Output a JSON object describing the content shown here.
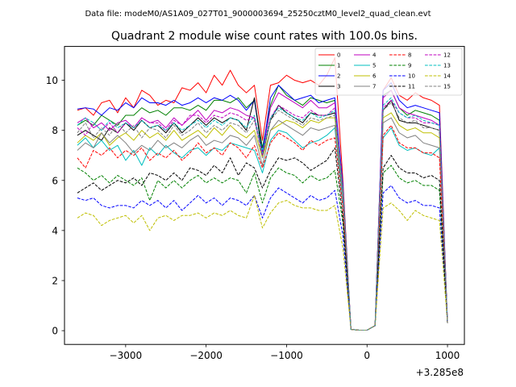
{
  "figure": {
    "suptitle": "Data file: modeM0/AS1A09_027T01_9000003694_25250cztM0_level2_quad_clean.evt"
  },
  "chart_data": {
    "type": "line",
    "title": "Quadrant 2 module wise count rates with 100.0s bins.",
    "xlabel": "",
    "ylabel": "",
    "x_offset_label": "+3.285e8",
    "xlim": [
      -3760,
      1210
    ],
    "ylim": [
      -0.55,
      11.35
    ],
    "xticks": [
      -3000,
      -2000,
      -1000,
      0,
      1000
    ],
    "xtick_labels": [
      "−3000",
      "−2000",
      "−1000",
      "0",
      "1000"
    ],
    "yticks": [
      0,
      2,
      4,
      6,
      8,
      10
    ],
    "ytick_labels": [
      "0",
      "2",
      "4",
      "6",
      "8",
      "10"
    ],
    "legend_position": "upper right",
    "x": [
      -3600,
      -3500,
      -3400,
      -3300,
      -3200,
      -3100,
      -3000,
      -2900,
      -2800,
      -2700,
      -2600,
      -2500,
      -2400,
      -2300,
      -2200,
      -2100,
      -2000,
      -1900,
      -1800,
      -1700,
      -1600,
      -1500,
      -1400,
      -1300,
      -1200,
      -1100,
      -1000,
      -900,
      -800,
      -700,
      -600,
      -500,
      -400,
      -300,
      -200,
      -100,
      0,
      100,
      200,
      300,
      400,
      500,
      600,
      700,
      800,
      900,
      1000
    ],
    "series": [
      {
        "name": "0",
        "color": "#ff0000",
        "dash": "solid",
        "values": [
          8.8,
          8.9,
          8.6,
          9.1,
          9.2,
          8.7,
          9.3,
          8.9,
          9.6,
          9.4,
          9.0,
          9.2,
          9.1,
          9.7,
          9.6,
          9.9,
          9.5,
          10.2,
          9.8,
          10.4,
          9.8,
          9.5,
          9.8,
          7.6,
          9.8,
          9.9,
          10.2,
          10.0,
          9.9,
          10.0,
          9.8,
          10.2,
          10.9,
          6.0,
          0.05,
          0.02,
          0.02,
          0.2,
          9.6,
          10.1,
          9.4,
          9.2,
          9.5,
          9.3,
          9.2,
          9.0,
          0.3
        ]
      },
      {
        "name": "1",
        "color": "#008000",
        "dash": "solid",
        "values": [
          8.2,
          8.4,
          8.2,
          8.6,
          8.4,
          8.2,
          8.6,
          8.6,
          8.9,
          8.7,
          8.8,
          8.6,
          8.9,
          8.9,
          8.8,
          9.0,
          8.8,
          9.2,
          9.2,
          9.1,
          9.3,
          8.9,
          9.2,
          7.3,
          9.0,
          9.8,
          9.4,
          9.2,
          9.0,
          9.3,
          9.2,
          9.1,
          9.2,
          5.7,
          0.05,
          0.02,
          0.02,
          0.2,
          9.4,
          9.6,
          8.9,
          8.6,
          8.8,
          8.7,
          8.6,
          8.4,
          0.3
        ]
      },
      {
        "name": "2",
        "color": "#0000ff",
        "dash": "solid",
        "values": [
          8.85,
          8.9,
          8.85,
          8.6,
          8.9,
          8.8,
          9.1,
          8.9,
          9.3,
          9.1,
          9.1,
          9.0,
          9.2,
          9.0,
          9.1,
          9.3,
          9.1,
          9.3,
          9.2,
          9.4,
          9.2,
          8.8,
          9.2,
          7.1,
          9.3,
          9.8,
          9.5,
          9.2,
          9.3,
          9.4,
          9.1,
          9.2,
          9.3,
          5.8,
          0.05,
          0.02,
          0.02,
          0.2,
          9.6,
          9.9,
          9.2,
          8.9,
          9.0,
          8.9,
          8.8,
          8.7,
          0.3
        ]
      },
      {
        "name": "3",
        "color": "#000000",
        "dash": "solid",
        "values": [
          7.8,
          8.0,
          7.8,
          7.6,
          8.1,
          7.9,
          8.3,
          8.0,
          8.4,
          8.1,
          8.2,
          7.9,
          8.3,
          7.9,
          8.2,
          8.5,
          8.2,
          8.5,
          8.3,
          8.5,
          8.4,
          8.0,
          9.3,
          7.0,
          8.4,
          9.0,
          8.7,
          8.5,
          8.3,
          8.7,
          8.6,
          8.6,
          8.7,
          5.4,
          0.05,
          0.02,
          0.02,
          0.2,
          8.8,
          9.2,
          8.4,
          8.3,
          8.3,
          8.2,
          8.1,
          8.0,
          0.3
        ]
      },
      {
        "name": "4",
        "color": "#bf00bf",
        "dash": "solid",
        "values": [
          8.3,
          8.5,
          8.1,
          8.3,
          8.0,
          8.3,
          8.4,
          8.1,
          8.5,
          8.3,
          8.4,
          8.1,
          8.5,
          8.2,
          8.5,
          8.8,
          8.4,
          8.8,
          8.7,
          8.9,
          8.8,
          8.6,
          8.5,
          7.0,
          8.9,
          9.5,
          9.3,
          9.1,
          8.9,
          9.2,
          8.9,
          8.9,
          9.1,
          5.6,
          0.05,
          0.02,
          0.02,
          0.2,
          9.3,
          9.6,
          8.9,
          8.7,
          8.6,
          8.5,
          8.4,
          8.2,
          0.3
        ]
      },
      {
        "name": "5",
        "color": "#00bfbf",
        "dash": "solid",
        "values": [
          7.4,
          7.7,
          7.3,
          7.6,
          7.2,
          7.4,
          6.8,
          7.2,
          6.6,
          7.3,
          7.0,
          7.4,
          7.1,
          6.9,
          7.2,
          7.3,
          7.0,
          7.3,
          7.2,
          7.5,
          7.4,
          7.3,
          7.2,
          6.3,
          7.6,
          8.0,
          7.9,
          7.6,
          7.3,
          7.5,
          7.6,
          7.8,
          8.1,
          5.0,
          0.05,
          0.02,
          0.02,
          0.2,
          7.7,
          8.1,
          7.4,
          7.2,
          7.3,
          7.1,
          7.0,
          7.3,
          0.3
        ]
      },
      {
        "name": "6",
        "color": "#bfbf00",
        "dash": "solid",
        "values": [
          7.5,
          7.8,
          7.6,
          7.9,
          7.4,
          7.7,
          7.9,
          7.6,
          8.0,
          7.7,
          7.9,
          7.6,
          8.0,
          7.6,
          7.8,
          8.0,
          7.7,
          8.1,
          7.8,
          8.2,
          7.9,
          7.7,
          8.0,
          6.9,
          8.0,
          8.2,
          8.4,
          8.3,
          8.1,
          8.4,
          8.3,
          8.5,
          8.5,
          5.5,
          0.05,
          0.02,
          0.02,
          0.2,
          8.5,
          8.7,
          8.2,
          8.0,
          8.1,
          7.9,
          7.9,
          7.7,
          0.3
        ]
      },
      {
        "name": "7",
        "color": "#808080",
        "dash": "solid",
        "values": [
          7.2,
          7.5,
          7.3,
          7.9,
          7.5,
          7.8,
          7.5,
          7.1,
          7.4,
          7.2,
          7.6,
          7.3,
          7.5,
          7.3,
          7.6,
          7.8,
          7.4,
          7.6,
          7.5,
          7.8,
          7.7,
          7.4,
          7.8,
          6.6,
          8.0,
          8.4,
          8.2,
          8.0,
          7.8,
          8.1,
          8.0,
          8.1,
          8.2,
          5.3,
          0.05,
          0.02,
          0.02,
          0.2,
          8.3,
          8.5,
          7.9,
          7.7,
          7.8,
          7.5,
          7.4,
          7.3,
          0.3
        ]
      },
      {
        "name": "8",
        "color": "#ff0000",
        "dash": "dashed",
        "values": [
          6.9,
          6.5,
          7.2,
          7.0,
          7.3,
          6.9,
          7.2,
          7.0,
          7.3,
          6.8,
          7.1,
          6.9,
          7.2,
          6.8,
          7.1,
          7.5,
          7.1,
          7.3,
          7.0,
          7.5,
          7.3,
          6.9,
          7.4,
          6.5,
          7.5,
          7.9,
          7.7,
          7.5,
          7.2,
          7.6,
          7.4,
          7.6,
          7.7,
          4.9,
          0.05,
          0.02,
          0.02,
          0.2,
          7.8,
          8.2,
          7.5,
          7.3,
          7.3,
          7.1,
          7.1,
          6.9,
          0.3
        ]
      },
      {
        "name": "9",
        "color": "#008000",
        "dash": "dashed",
        "values": [
          6.5,
          6.3,
          6.0,
          6.2,
          5.9,
          6.2,
          6.0,
          5.8,
          6.1,
          5.2,
          6.0,
          5.7,
          6.0,
          5.7,
          6.0,
          6.2,
          5.9,
          6.1,
          5.9,
          6.1,
          6.0,
          5.5,
          6.3,
          5.1,
          6.1,
          6.5,
          6.3,
          6.2,
          5.9,
          6.2,
          6.0,
          6.1,
          6.4,
          4.3,
          0.05,
          0.02,
          0.02,
          0.2,
          6.3,
          6.6,
          6.1,
          5.9,
          6.0,
          5.8,
          5.8,
          5.6,
          0.3
        ]
      },
      {
        "name": "10",
        "color": "#0000ff",
        "dash": "dashed",
        "values": [
          5.3,
          5.2,
          5.3,
          5.0,
          4.9,
          5.0,
          5.0,
          4.9,
          5.2,
          5.0,
          5.2,
          4.9,
          5.2,
          4.8,
          5.1,
          5.4,
          5.1,
          5.3,
          5.0,
          5.3,
          5.2,
          5.0,
          5.4,
          4.5,
          5.3,
          5.7,
          5.5,
          5.3,
          5.1,
          5.4,
          5.2,
          5.3,
          5.6,
          3.8,
          0.05,
          0.02,
          0.02,
          0.2,
          5.5,
          5.8,
          5.3,
          5.1,
          5.2,
          5.0,
          5.0,
          4.9,
          0.3
        ]
      },
      {
        "name": "11",
        "color": "#000000",
        "dash": "dashed",
        "values": [
          5.5,
          5.7,
          5.9,
          5.6,
          5.8,
          6.0,
          5.9,
          6.1,
          5.8,
          6.3,
          6.2,
          6.0,
          6.3,
          6.0,
          6.5,
          6.4,
          6.2,
          6.6,
          6.3,
          6.9,
          6.2,
          6.7,
          6.5,
          5.7,
          6.4,
          6.9,
          6.8,
          6.9,
          6.7,
          6.4,
          6.6,
          6.8,
          7.3,
          4.5,
          0.05,
          0.02,
          0.02,
          0.2,
          6.5,
          7.0,
          6.5,
          6.3,
          6.3,
          6.1,
          6.2,
          6.0,
          0.3
        ]
      },
      {
        "name": "12",
        "color": "#bf00bf",
        "dash": "dashed",
        "values": [
          8.1,
          7.8,
          8.3,
          8.0,
          8.3,
          7.9,
          8.3,
          8.1,
          8.5,
          8.3,
          8.3,
          8.0,
          8.4,
          8.2,
          8.6,
          8.6,
          8.3,
          8.6,
          8.5,
          8.7,
          8.6,
          8.4,
          8.5,
          7.1,
          8.5,
          9.0,
          8.8,
          8.6,
          8.5,
          8.8,
          8.6,
          8.6,
          8.9,
          5.6,
          0.05,
          0.02,
          0.02,
          0.2,
          8.9,
          9.2,
          8.7,
          8.5,
          8.5,
          8.3,
          8.3,
          8.2,
          0.3
        ]
      },
      {
        "name": "13",
        "color": "#00bfbf",
        "dash": "dashed",
        "values": [
          8.2,
          8.5,
          8.3,
          8.0,
          8.4,
          8.1,
          8.3,
          8.1,
          8.4,
          8.1,
          8.2,
          8.0,
          8.3,
          8.0,
          8.2,
          8.4,
          8.1,
          8.4,
          8.2,
          8.5,
          8.4,
          8.1,
          8.6,
          7.1,
          8.5,
          8.9,
          8.7,
          8.5,
          8.4,
          8.7,
          8.5,
          8.6,
          8.8,
          5.6,
          0.05,
          0.02,
          0.02,
          0.2,
          9.0,
          9.3,
          8.7,
          8.5,
          8.6,
          8.4,
          8.3,
          8.2,
          0.3
        ]
      },
      {
        "name": "14",
        "color": "#bfbf00",
        "dash": "dashed",
        "values": [
          4.5,
          4.7,
          4.6,
          4.2,
          4.4,
          4.5,
          4.6,
          4.3,
          4.6,
          4.0,
          4.5,
          4.6,
          4.4,
          4.6,
          4.6,
          4.7,
          4.5,
          4.7,
          4.6,
          4.8,
          4.6,
          4.5,
          5.4,
          4.1,
          4.7,
          5.1,
          5.2,
          5.0,
          4.9,
          4.9,
          4.8,
          4.8,
          5.0,
          3.3,
          0.05,
          0.02,
          0.02,
          0.2,
          4.9,
          5.1,
          4.8,
          4.4,
          4.8,
          4.6,
          4.5,
          4.4,
          0.3
        ]
      },
      {
        "name": "15",
        "color": "#808080",
        "dash": "dashed",
        "values": [
          7.9,
          8.3,
          7.7,
          8.1,
          7.8,
          8.3,
          7.9,
          8.2,
          7.7,
          8.1,
          8.0,
          7.7,
          8.2,
          7.8,
          8.0,
          8.3,
          7.9,
          8.2,
          8.0,
          8.3,
          8.2,
          7.9,
          8.4,
          6.9,
          8.4,
          8.8,
          8.6,
          8.4,
          8.2,
          8.5,
          8.4,
          8.5,
          8.6,
          5.5,
          0.05,
          0.02,
          0.02,
          0.2,
          8.8,
          9.1,
          8.5,
          8.3,
          8.4,
          8.1,
          8.1,
          8.0,
          0.3
        ]
      }
    ]
  }
}
